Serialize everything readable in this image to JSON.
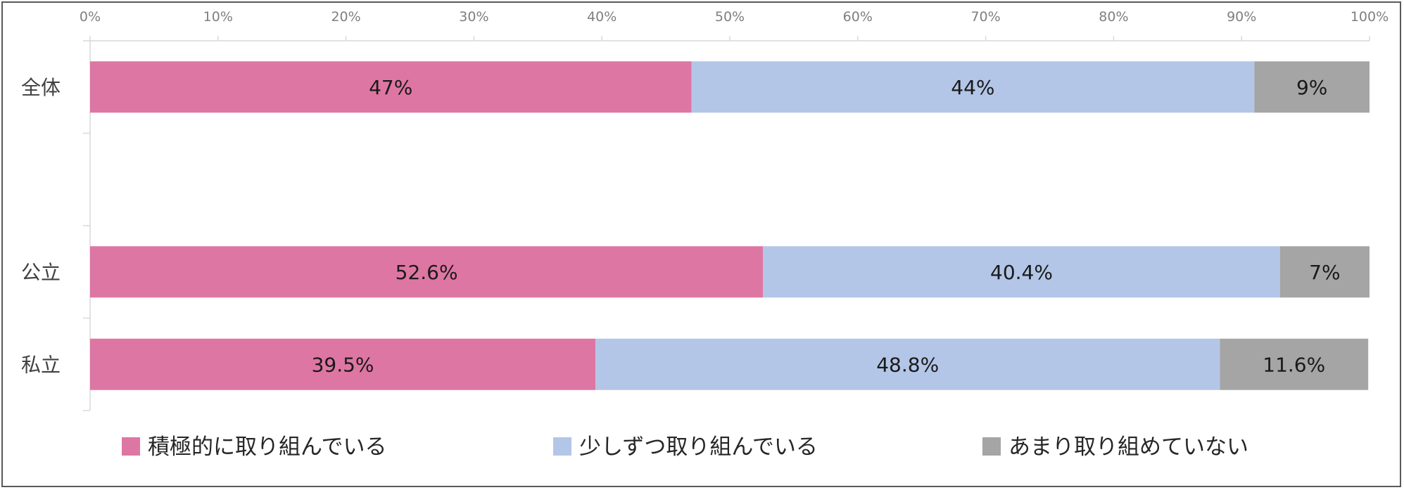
{
  "chart_data": {
    "type": "bar",
    "orientation": "horizontal",
    "stacked": true,
    "categories": [
      "全体",
      "",
      "公立",
      "私立"
    ],
    "x_ticks": [
      "0%",
      "10%",
      "20%",
      "30%",
      "40%",
      "50%",
      "60%",
      "70%",
      "80%",
      "90%",
      "100%"
    ],
    "xlim": [
      0,
      100
    ],
    "x_axis_position": "top",
    "grid": false,
    "legend_position": "bottom",
    "series": [
      {
        "name": "積極的に取り組んでいる",
        "color": "#de76a3",
        "values": [
          47,
          null,
          52.6,
          39.5
        ],
        "labels": [
          "47%",
          "",
          "52.6%",
          "39.5%"
        ]
      },
      {
        "name": "少しずつ取り組んでいる",
        "color": "#b3c6e7",
        "values": [
          44,
          null,
          40.4,
          48.8
        ],
        "labels": [
          "44%",
          "",
          "40.4%",
          "48.8%"
        ]
      },
      {
        "name": "あまり取り組めていない",
        "color": "#a5a5a5",
        "values": [
          9,
          null,
          7,
          11.6
        ],
        "labels": [
          "9%",
          "",
          "7%",
          "11.6%"
        ]
      }
    ]
  }
}
